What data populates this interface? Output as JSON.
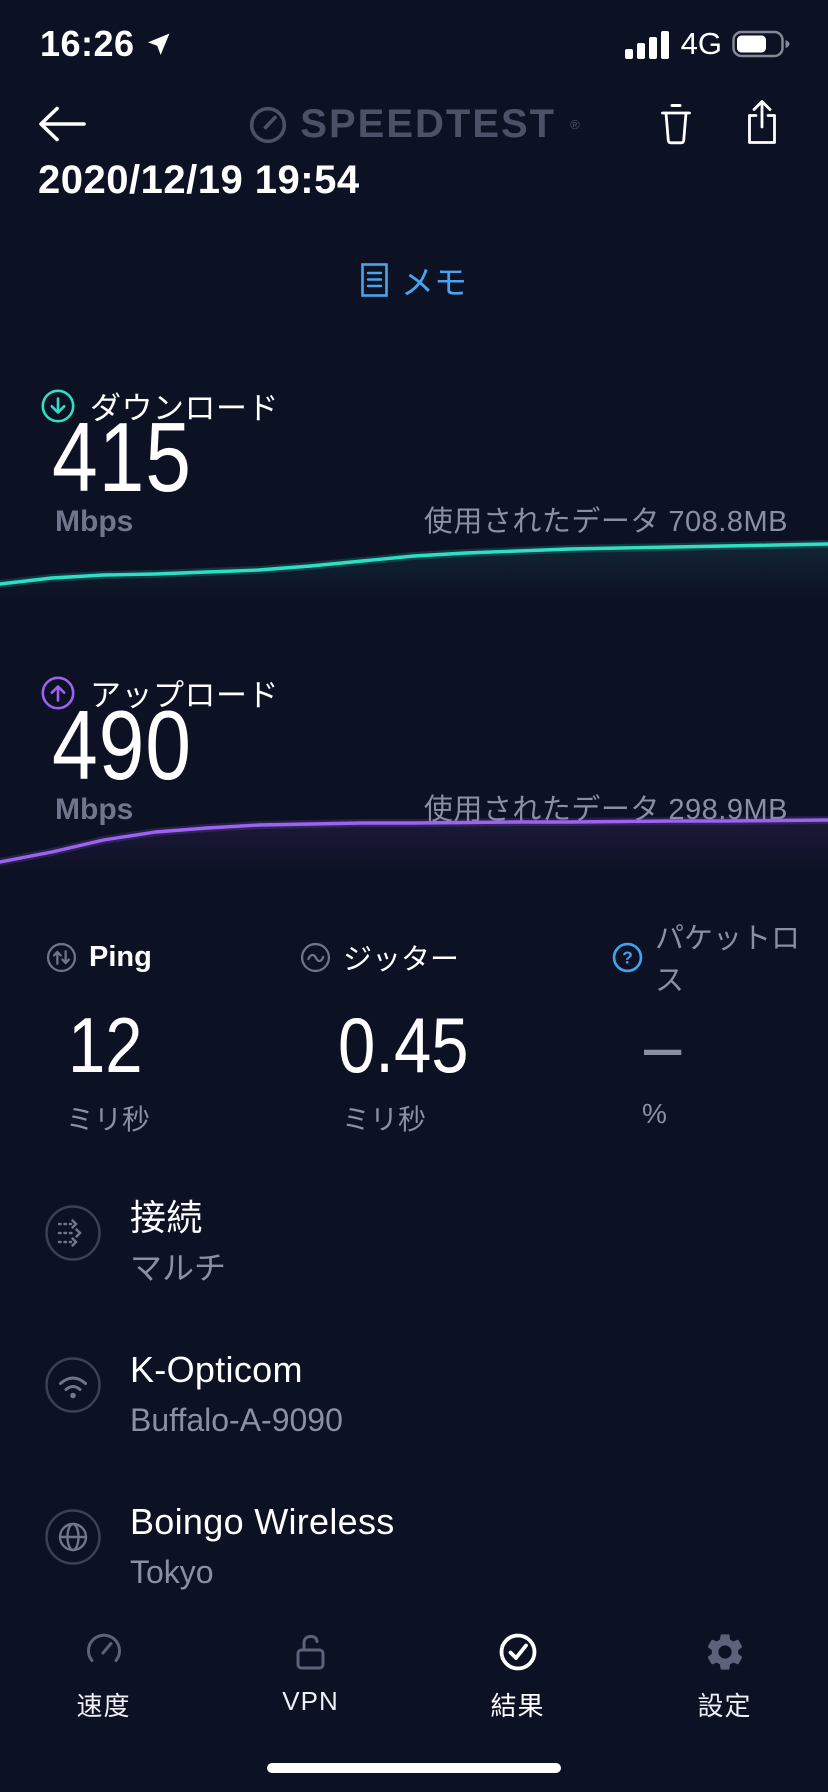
{
  "status_bar": {
    "time": "16:26",
    "network": "4G"
  },
  "header": {
    "logo": "SPEEDTEST",
    "trademark": "®",
    "date": "2020/12/19 19:54",
    "memo": "メモ"
  },
  "download": {
    "label": "ダウンロード",
    "value": "415",
    "unit": "Mbps",
    "data_used": "使用されたデータ 708.8MB",
    "color": "#2fdfc4",
    "sparkline": [
      56,
      50,
      47,
      46,
      44,
      42,
      38,
      33,
      28,
      25,
      23,
      21,
      20,
      19,
      18,
      17,
      16
    ]
  },
  "upload": {
    "label": "アップロード",
    "value": "490",
    "unit": "Mbps",
    "data_used": "使用されたデータ 298.9MB",
    "color": "#9d63f0",
    "sparkline": [
      62,
      52,
      40,
      32,
      28,
      25,
      24,
      23,
      23,
      22.5,
      22,
      22,
      21.5,
      21,
      21,
      20.5,
      20
    ]
  },
  "chart_data": [
    {
      "type": "line",
      "title": "download-speed-sparkline",
      "x": "time",
      "ylabel": "Mbps",
      "series": [
        {
          "name": "download",
          "values": [
            370,
            385,
            392,
            395,
            400,
            404,
            412,
            422,
            433,
            440,
            444,
            449,
            451,
            453,
            455,
            457,
            460
          ]
        }
      ],
      "legend_position": "none",
      "grid": false
    },
    {
      "type": "line",
      "title": "upload-speed-sparkline",
      "x": "time",
      "ylabel": "Mbps",
      "series": [
        {
          "name": "upload",
          "values": [
            120,
            250,
            370,
            440,
            465,
            480,
            484,
            488,
            488,
            490,
            491,
            491,
            492,
            493,
            493,
            494,
            495
          ]
        }
      ],
      "legend_position": "none",
      "grid": false
    }
  ],
  "metrics": {
    "ping": {
      "label": "Ping",
      "value": "12",
      "unit": "ミリ秒"
    },
    "jitter": {
      "label": "ジッター",
      "value": "0.45",
      "unit": "ミリ秒"
    },
    "packet_loss": {
      "label": "パケットロス",
      "value": "–",
      "unit": "%"
    }
  },
  "connection": {
    "title": "接続",
    "subtitle": "マルチ"
  },
  "isp": {
    "title": "K-Opticom",
    "subtitle": "Buffalo-A-9090"
  },
  "server": {
    "title": "Boingo Wireless",
    "subtitle": "Tokyo"
  },
  "tab_bar": {
    "items": [
      {
        "label": "速度",
        "active": false
      },
      {
        "label": "VPN",
        "active": false
      },
      {
        "label": "結果",
        "active": true
      },
      {
        "label": "設定",
        "active": false
      }
    ]
  },
  "colors": {
    "background": "#0d1124",
    "accent_blue": "#4ba3ee",
    "download_teal": "#2fdfc4",
    "upload_purple": "#9d63f0",
    "gray_text": "#8a8fa3"
  }
}
